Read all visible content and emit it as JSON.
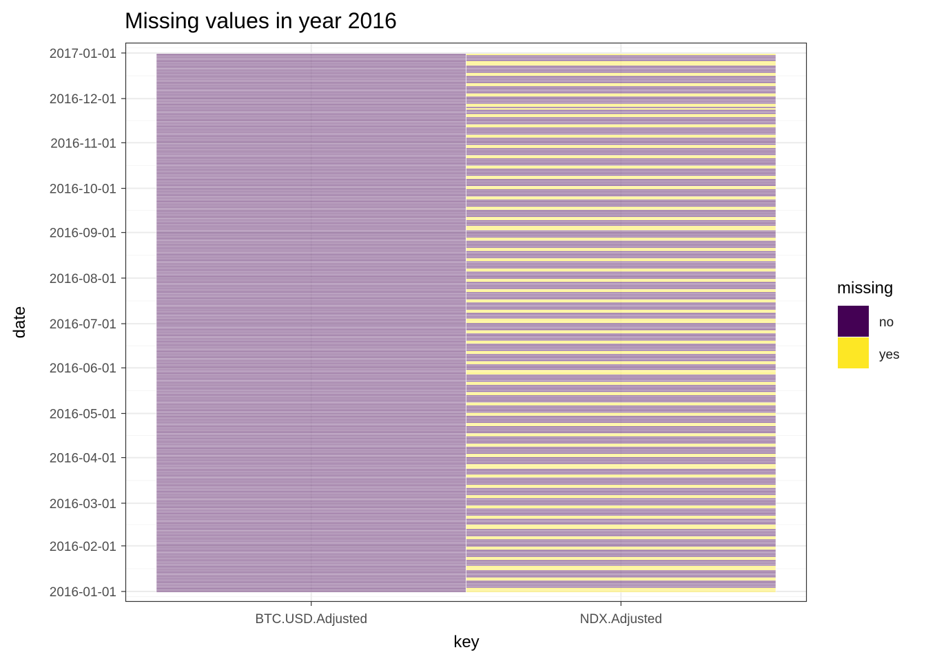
{
  "chart_data": {
    "type": "heatmap",
    "title": "Missing values in year 2016",
    "xlabel": "key",
    "ylabel": "date",
    "categories": [
      "BTC.USD.Adjusted",
      "NDX.Adjusted"
    ],
    "y_ticks": [
      "2016-01-01",
      "2016-02-01",
      "2016-03-01",
      "2016-04-01",
      "2016-05-01",
      "2016-06-01",
      "2016-07-01",
      "2016-08-01",
      "2016-09-01",
      "2016-10-01",
      "2016-11-01",
      "2016-12-01",
      "2017-01-01"
    ],
    "ylim": [
      "2015-12-25",
      "2017-01-08"
    ],
    "date_range": [
      "2016-01-01",
      "2016-12-31"
    ],
    "grid": true,
    "legend": {
      "title": "missing",
      "position": "right",
      "entries": [
        {
          "label": "no",
          "color": "#440154"
        },
        {
          "label": "yes",
          "color": "#FDE725"
        }
      ]
    },
    "series": [
      {
        "key": "BTC.USD.Adjusted",
        "missing_rule": "none"
      },
      {
        "key": "NDX.Adjusted",
        "missing_rule": "weekends_and_market_holidays",
        "holidays": [
          "2016-01-01",
          "2016-01-18",
          "2016-02-15",
          "2016-03-25",
          "2016-05-30",
          "2016-07-04",
          "2016-09-05",
          "2016-11-24",
          "2016-12-26"
        ]
      }
    ]
  },
  "colors": {
    "no": "#440154",
    "yes": "#FDE725",
    "tile_outline": "#ffffff",
    "grid_major": "#ebebeb",
    "grid_minor": "#f5f5f5",
    "panel_border": "#333333"
  }
}
